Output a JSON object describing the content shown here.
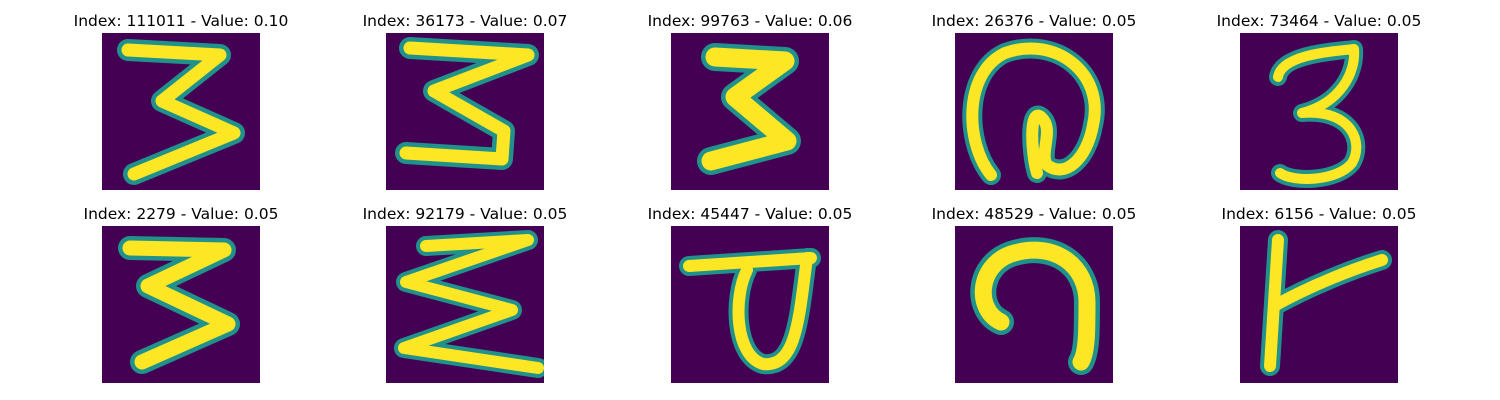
{
  "figure": {
    "background": "#ffffff",
    "image_background_color": "#440154",
    "stroke_color": "#fde725",
    "edge_colors": [
      "#21918c",
      "#5ec962",
      "#3b528b"
    ],
    "colormap": "viridis"
  },
  "panels": [
    {
      "title": "Index: 111011 - Value: 0.10",
      "glyph": "digit-3-angular"
    },
    {
      "title": "Index: 36173 - Value: 0.07",
      "glyph": "digit-3-angular"
    },
    {
      "title": "Index: 99763 - Value: 0.06",
      "glyph": "digit-3-bold"
    },
    {
      "title": "Index: 26376 - Value: 0.05",
      "glyph": "at-sign-like"
    },
    {
      "title": "Index: 73464 - Value: 0.05",
      "glyph": "digit-3-rounded"
    },
    {
      "title": "Index: 2279 - Value: 0.05",
      "glyph": "digit-3-angular"
    },
    {
      "title": "Index: 92179 - Value: 0.05",
      "glyph": "zigzag-3"
    },
    {
      "title": "Index: 45447 - Value: 0.05",
      "glyph": "loop-with-bar"
    },
    {
      "title": "Index: 48529 - Value: 0.05",
      "glyph": "hook-curve"
    },
    {
      "title": "Index: 6156 - Value: 0.05",
      "glyph": "t-stroke"
    }
  ]
}
